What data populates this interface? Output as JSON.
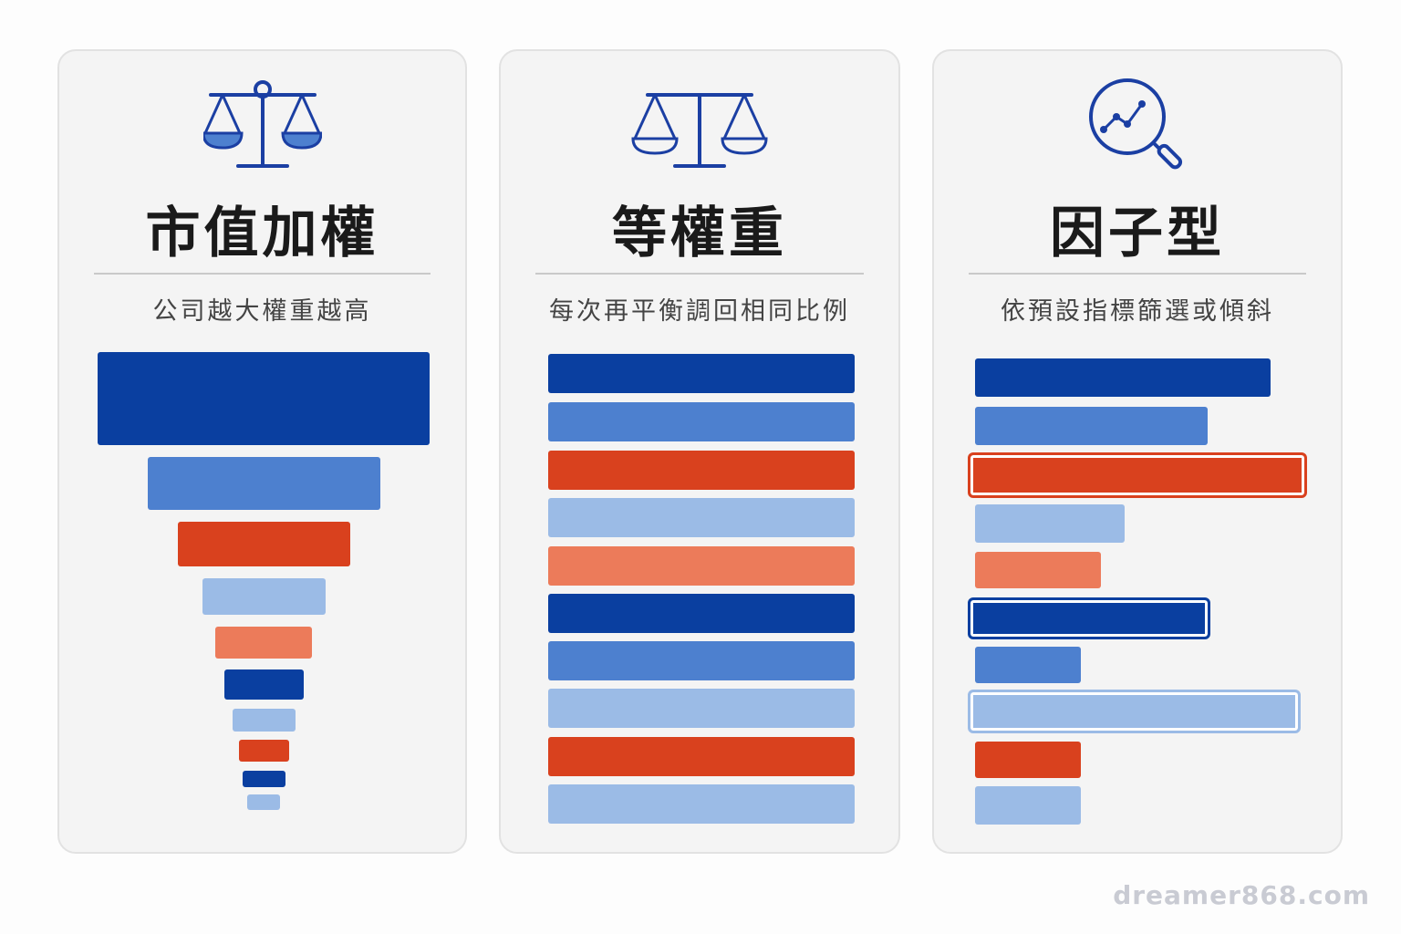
{
  "colors": {
    "dark_blue": "#0a3fa0",
    "mid_blue": "#4d80cf",
    "light_blue": "#9bbbe6",
    "red": "#d9411e",
    "salmon": "#ec7b5a",
    "icon_blue": "#1b3fa3"
  },
  "cards": [
    {
      "title": "市值加權",
      "subtitle": "公司越大權重越高",
      "icon": "balance-scale-icon",
      "bar_shape": "funnel, decreasing weight",
      "bars": [
        {
          "weight": 1.0,
          "color": "dark_blue"
        },
        {
          "weight": 0.7,
          "color": "mid_blue"
        },
        {
          "weight": 0.52,
          "color": "red"
        },
        {
          "weight": 0.37,
          "color": "light_blue"
        },
        {
          "weight": 0.29,
          "color": "salmon"
        },
        {
          "weight": 0.24,
          "color": "dark_blue"
        },
        {
          "weight": 0.19,
          "color": "light_blue"
        },
        {
          "weight": 0.15,
          "color": "red"
        },
        {
          "weight": 0.13,
          "color": "dark_blue"
        },
        {
          "weight": 0.1,
          "color": "light_blue"
        }
      ]
    },
    {
      "title": "等權重",
      "subtitle": "每次再平衡調回相同比例",
      "icon": "balance-scale-icon",
      "bar_shape": "equal weight",
      "bars": [
        {
          "weight": 1.0,
          "color": "dark_blue"
        },
        {
          "weight": 1.0,
          "color": "mid_blue"
        },
        {
          "weight": 1.0,
          "color": "red"
        },
        {
          "weight": 1.0,
          "color": "light_blue"
        },
        {
          "weight": 1.0,
          "color": "salmon"
        },
        {
          "weight": 1.0,
          "color": "dark_blue"
        },
        {
          "weight": 1.0,
          "color": "mid_blue"
        },
        {
          "weight": 1.0,
          "color": "light_blue"
        },
        {
          "weight": 1.0,
          "color": "red"
        },
        {
          "weight": 1.0,
          "color": "light_blue"
        }
      ]
    },
    {
      "title": "因子型",
      "subtitle": "依預設指標篩選或傾斜",
      "icon": "magnifier-chart-icon",
      "bar_shape": "factor tilt, some bars highlighted",
      "bars": [
        {
          "weight": 0.89,
          "color": "dark_blue",
          "highlight": false
        },
        {
          "weight": 0.7,
          "color": "mid_blue",
          "highlight": false
        },
        {
          "weight": 1.0,
          "color": "red",
          "highlight": true
        },
        {
          "weight": 0.45,
          "color": "light_blue",
          "highlight": false
        },
        {
          "weight": 0.38,
          "color": "salmon",
          "highlight": false
        },
        {
          "weight": 0.71,
          "color": "dark_blue",
          "highlight": true
        },
        {
          "weight": 0.32,
          "color": "mid_blue",
          "highlight": false
        },
        {
          "weight": 0.98,
          "color": "light_blue",
          "highlight": true
        },
        {
          "weight": 0.32,
          "color": "red",
          "highlight": false
        },
        {
          "weight": 0.32,
          "color": "light_blue",
          "highlight": false
        }
      ]
    }
  ],
  "watermark": "dreamer868.com"
}
